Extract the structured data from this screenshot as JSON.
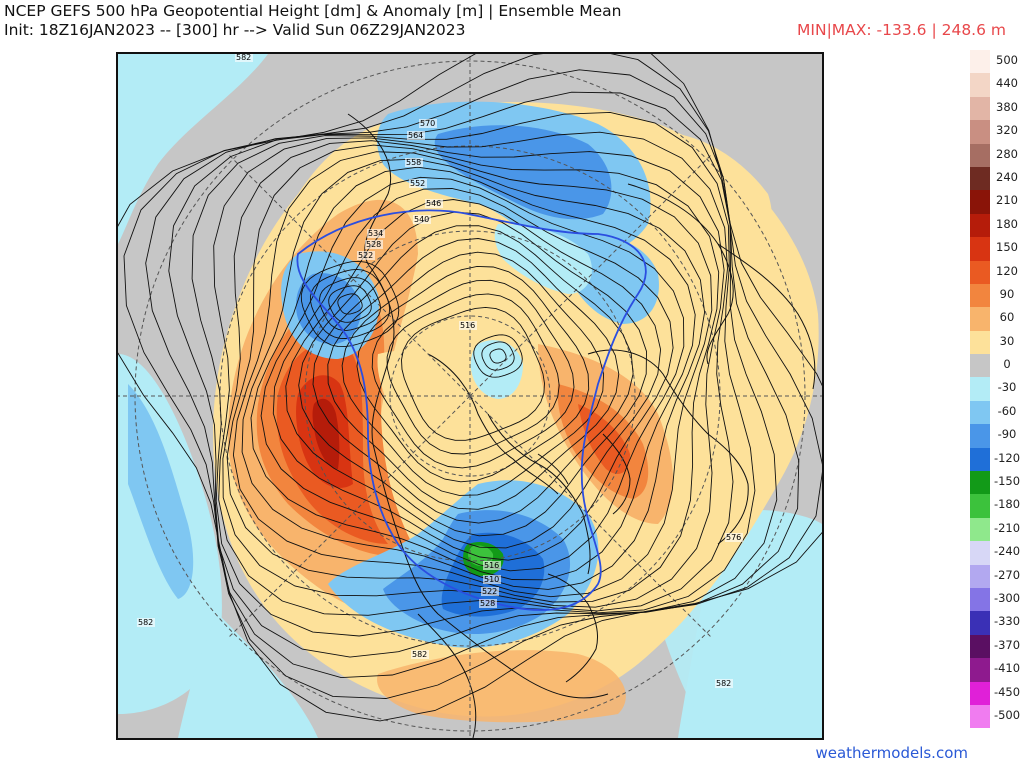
{
  "header": {
    "title_line1": "NCEP GEFS 500 hPa Geopotential Height [dm] & Anomaly [m] | Ensemble Mean",
    "title_line2": "Init: 18Z16JAN2023 -- [300] hr --> Valid Sun 06Z29JAN2023",
    "minmax": "MIN|MAX: -133.6 | 248.6 m"
  },
  "colorbar": [
    {
      "label": "500",
      "color": "#fdf0ea"
    },
    {
      "label": "440",
      "color": "#f3d6c6"
    },
    {
      "label": "380",
      "color": "#e2b5a6"
    },
    {
      "label": "320",
      "color": "#c98f82"
    },
    {
      "label": "280",
      "color": "#a66e63"
    },
    {
      "label": "240",
      "color": "#6e2b22"
    },
    {
      "label": "210",
      "color": "#8a1408"
    },
    {
      "label": "180",
      "color": "#b51c0a"
    },
    {
      "label": "150",
      "color": "#d83412"
    },
    {
      "label": "120",
      "color": "#ea5a22"
    },
    {
      "label": "90",
      "color": "#f2853e"
    },
    {
      "label": "60",
      "color": "#f8b46c"
    },
    {
      "label": "30",
      "color": "#fde19a"
    },
    {
      "label": "0",
      "color": "#c6c6c6"
    },
    {
      "label": "-30",
      "color": "#b3ecf6"
    },
    {
      "label": "-60",
      "color": "#7fc7f2"
    },
    {
      "label": "-90",
      "color": "#4a96e8"
    },
    {
      "label": "-120",
      "color": "#1f6fd8"
    },
    {
      "label": "-150",
      "color": "#129a18"
    },
    {
      "label": "-180",
      "color": "#3cc23c"
    },
    {
      "label": "-210",
      "color": "#8fe88c"
    },
    {
      "label": "-240",
      "color": "#d7d7f6"
    },
    {
      "label": "-270",
      "color": "#b2a8f0"
    },
    {
      "label": "-300",
      "color": "#8474e6"
    },
    {
      "label": "-330",
      "color": "#3a30b6"
    },
    {
      "label": "-370",
      "color": "#5a0f62"
    },
    {
      "label": "-410",
      "color": "#8e1a8e"
    },
    {
      "label": "-450",
      "color": "#e020d8"
    },
    {
      "label": "-500",
      "color": "#f07cf0"
    }
  ],
  "contour_labels": [
    "582",
    "570",
    "564",
    "558",
    "552",
    "546",
    "540",
    "534",
    "528",
    "522",
    "516",
    "576",
    "582",
    "582",
    "516",
    "510",
    "522",
    "528",
    "582"
  ],
  "watermark": "weathermodels.com",
  "colors": {
    "title": "#111111",
    "minmax": "#e8474a",
    "watermark": "#2a59d6",
    "zero_anomaly": "#c6c6c6"
  }
}
